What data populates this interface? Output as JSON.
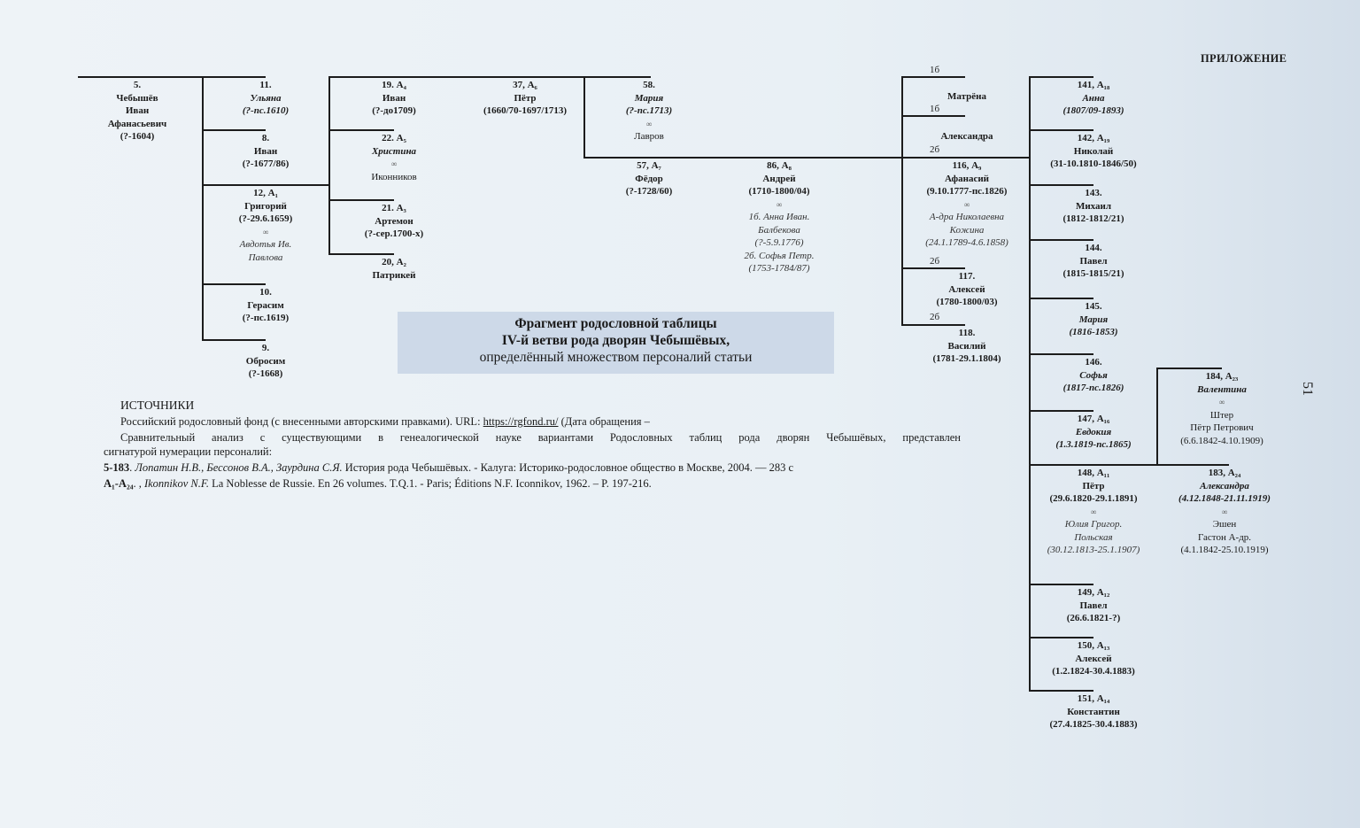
{
  "header": "ПРИЛОЖЕНИЕ",
  "page_number": "51",
  "title": {
    "line1": "Фрагмент родословной таблицы",
    "line2": "IV-й ветви рода дворян Чебышёвых,",
    "line3": "определённый множеством персоналий статьи"
  },
  "colors": {
    "title_box": "#cdd9e8",
    "page": "#e9f0f5",
    "lines": "#1c1c1c"
  },
  "nodes": [
    {
      "id": "5",
      "lines": [
        [
          "b",
          "5."
        ],
        [
          "b",
          "Чебышёв"
        ],
        [
          "b",
          "Иван"
        ],
        [
          "b",
          "Афанасьевич"
        ],
        [
          "b",
          "(?-1604)"
        ]
      ]
    },
    {
      "id": "11",
      "lines": [
        [
          "b",
          "11."
        ],
        [
          "i",
          "Ульяна"
        ],
        [
          "i",
          "(?-пс.1610)"
        ]
      ]
    },
    {
      "id": "8",
      "lines": [
        [
          "b",
          "8."
        ],
        [
          "b",
          "Иван"
        ],
        [
          "b",
          "(?-1677/86)"
        ]
      ]
    },
    {
      "id": "12",
      "lines": [
        [
          "b",
          "12, А₁"
        ],
        [
          "b",
          "Григорий"
        ],
        [
          "b",
          "(?-29.6.1659)"
        ],
        [
          "m",
          "∞"
        ],
        [
          "s",
          "Авдотья Ив."
        ],
        [
          "s",
          "Павлова"
        ]
      ]
    },
    {
      "id": "10",
      "lines": [
        [
          "b",
          "10."
        ],
        [
          "b",
          "Герасим"
        ],
        [
          "b",
          "(?-пс.1619)"
        ]
      ]
    },
    {
      "id": "9",
      "lines": [
        [
          "b",
          "9."
        ],
        [
          "b",
          "Обросим"
        ],
        [
          "b",
          "(?-1668)"
        ]
      ]
    },
    {
      "id": "19",
      "lines": [
        [
          "b",
          "19. А₄"
        ],
        [
          "b",
          "Иван"
        ],
        [
          "b",
          "(?-до1709)"
        ]
      ]
    },
    {
      "id": "22",
      "lines": [
        [
          "b",
          "22. А₅"
        ],
        [
          "i",
          "Христина"
        ],
        [
          "m",
          "∞"
        ],
        [
          "n",
          "Иконников"
        ]
      ]
    },
    {
      "id": "21",
      "lines": [
        [
          "b",
          "21. А₃"
        ],
        [
          "b",
          "Артемон"
        ],
        [
          "b",
          "(?-сер.1700-х)"
        ]
      ]
    },
    {
      "id": "20",
      "lines": [
        [
          "b",
          "20, А₂"
        ],
        [
          "b",
          "Патрикей"
        ]
      ]
    },
    {
      "id": "37",
      "lines": [
        [
          "b",
          "37, А₆"
        ],
        [
          "b",
          "Пётр"
        ],
        [
          "b",
          "(1660/70-1697/1713)"
        ]
      ]
    },
    {
      "id": "58",
      "lines": [
        [
          "b",
          "58."
        ],
        [
          "i",
          "Мария"
        ],
        [
          "i",
          "(?-пс.1713)"
        ],
        [
          "m",
          "∞"
        ],
        [
          "n",
          "Лавров"
        ]
      ]
    },
    {
      "id": "57",
      "lines": [
        [
          "b",
          "57, А₇"
        ],
        [
          "b",
          "Фёдор"
        ],
        [
          "b",
          "(?-1728/60)"
        ]
      ]
    },
    {
      "id": "86",
      "lines": [
        [
          "b",
          "86, А₈"
        ],
        [
          "b",
          "Андрей"
        ],
        [
          "b",
          "(1710-1800/04)"
        ],
        [
          "m",
          "∞"
        ],
        [
          "s",
          "1б. Анна Иван."
        ],
        [
          "s",
          "Балбекова"
        ],
        [
          "s",
          "(?-5.9.1776)"
        ],
        [
          "s",
          "2б. Софья Петр."
        ],
        [
          "s",
          "(1753-1784/87)"
        ]
      ]
    },
    {
      "id": "matrena",
      "lines": [
        [
          "b",
          "Матрёна"
        ]
      ]
    },
    {
      "id": "aleksandra",
      "lines": [
        [
          "b",
          "Александра"
        ]
      ]
    },
    {
      "id": "116",
      "lines": [
        [
          "b",
          "116, А₉"
        ],
        [
          "b",
          "Афанасий"
        ],
        [
          "b",
          "(9.10.1777-пс.1826)"
        ],
        [
          "m",
          "∞"
        ],
        [
          "s",
          "А-дра Николаевна"
        ],
        [
          "s",
          "Кожина"
        ],
        [
          "s",
          "(24.1.1789-4.6.1858)"
        ]
      ]
    },
    {
      "id": "117",
      "lines": [
        [
          "b",
          "117."
        ],
        [
          "b",
          "Алексей"
        ],
        [
          "b",
          "(1780-1800/03)"
        ]
      ]
    },
    {
      "id": "118",
      "lines": [
        [
          "b",
          "118."
        ],
        [
          "b",
          "Василий"
        ],
        [
          "b",
          "(1781-29.1.1804)"
        ]
      ]
    },
    {
      "id": "141",
      "lines": [
        [
          "b",
          "141, А₁₈"
        ],
        [
          "i",
          "Анна"
        ],
        [
          "i",
          "(1807/09-1893)"
        ]
      ]
    },
    {
      "id": "142",
      "lines": [
        [
          "b",
          "142, А₁₉"
        ],
        [
          "b",
          "Николай"
        ],
        [
          "b",
          "(31-10.1810-1846/50)"
        ]
      ]
    },
    {
      "id": "143",
      "lines": [
        [
          "b",
          "143."
        ],
        [
          "b",
          "Михаил"
        ],
        [
          "b",
          "(1812-1812/21)"
        ]
      ]
    },
    {
      "id": "144",
      "lines": [
        [
          "b",
          "144."
        ],
        [
          "b",
          "Павел"
        ],
        [
          "b",
          "(1815-1815/21)"
        ]
      ]
    },
    {
      "id": "145",
      "lines": [
        [
          "b",
          "145."
        ],
        [
          "i",
          "Мария"
        ],
        [
          "i",
          "(1816-1853)"
        ]
      ]
    },
    {
      "id": "146",
      "lines": [
        [
          "b",
          "146."
        ],
        [
          "i",
          "Софья"
        ],
        [
          "i",
          "(1817-пс.1826)"
        ]
      ]
    },
    {
      "id": "147",
      "lines": [
        [
          "b",
          "147, А₁₆"
        ],
        [
          "i",
          "Евдокия"
        ],
        [
          "i",
          "(1.3.1819-пс.1865)"
        ]
      ]
    },
    {
      "id": "148",
      "lines": [
        [
          "b",
          "148, А₁₁"
        ],
        [
          "b",
          "Пётр"
        ],
        [
          "b",
          "(29.6.1820-29.1.1891)"
        ],
        [
          "m",
          "∞"
        ],
        [
          "s",
          "Юлия Григор."
        ],
        [
          "s",
          "Польская"
        ],
        [
          "s",
          "(30.12.1813-25.1.1907)"
        ]
      ]
    },
    {
      "id": "149",
      "lines": [
        [
          "b",
          "149, А₁₂"
        ],
        [
          "b",
          "Павел"
        ],
        [
          "b",
          "(26.6.1821-?)"
        ]
      ]
    },
    {
      "id": "150",
      "lines": [
        [
          "b",
          "150, А₁₃"
        ],
        [
          "b",
          "Алексей"
        ],
        [
          "b",
          "(1.2.1824-30.4.1883)"
        ]
      ]
    },
    {
      "id": "151",
      "lines": [
        [
          "b",
          "151, А₁₄"
        ],
        [
          "b",
          "Константин"
        ],
        [
          "b",
          "(27.4.1825-30.4.1883)"
        ]
      ]
    },
    {
      "id": "184",
      "lines": [
        [
          "b",
          "184, А₂₃"
        ],
        [
          "i",
          "Валентина"
        ],
        [
          "m",
          "∞"
        ],
        [
          "n",
          "Штер"
        ],
        [
          "n",
          "Пётр Петрович"
        ],
        [
          "n",
          "(6.6.1842-4.10.1909)"
        ]
      ]
    },
    {
      "id": "183",
      "lines": [
        [
          "b",
          "183, А₂₄"
        ],
        [
          "i",
          "Александра"
        ],
        [
          "i",
          "(4.12.1848-21.11.1919)"
        ],
        [
          "m",
          "∞"
        ],
        [
          "n",
          "Эшен"
        ],
        [
          "n",
          "Гастон А-др."
        ],
        [
          "n",
          "(4.1.1842-25.10.1919)"
        ]
      ]
    }
  ],
  "marriage_labels": [
    "1б",
    "1б",
    "2б",
    "2б",
    "2б"
  ],
  "sources": {
    "heading": "ИСТОЧНИКИ",
    "line1_text": "Российский родословный фонд (с внесенными авторскими правками). URL: ",
    "line1_link": "https://rgfond.ru/",
    "line1_tail": " (Дата обращения –",
    "line2": "Сравнительный анализ с существующими в генеалогической науке вариантами Родословных таблиц рода дворян Чебышёвых, представлен",
    "line3": "сигнатурой нумерации персоналий:",
    "ref1_code": "5-183",
    "ref1_authors": "Лопатин Н.В., Бессонов В.А., Заурдина С.Я.",
    "ref1_text": " История рода Чебышёвых. - Калуга: Историко-родословное общество в Москве, 2004. — 283 с",
    "ref2_code": "А₁-А₂₄",
    "ref2_authors": "Ikonnikov N.F.",
    "ref2_text": " La Noblesse de Russie. En 26 volumes. T.Q.1. - Paris; Éditions N.F. Iconnikov, 1962. – P. 197-216."
  }
}
